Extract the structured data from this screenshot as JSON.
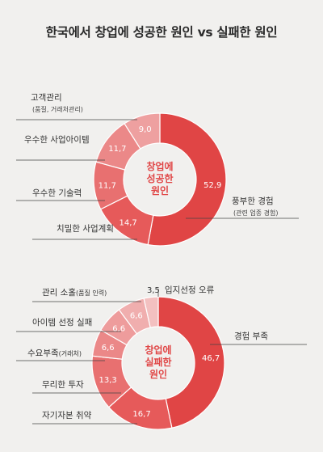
{
  "title": "한국에서 창업에 성공한 원인 vs 실패한 원인",
  "chart_data": [
    {
      "type": "pie",
      "center_label": [
        "창업에",
        "성공한",
        "원인"
      ],
      "slices": [
        {
          "label": "풍부한 경험",
          "sublabel": "(관련 업종 경험)",
          "value": 52.9,
          "display": "52,9",
          "color": "#e04545"
        },
        {
          "label": "치밀한 사업계획",
          "sublabel": "",
          "value": 14.7,
          "display": "14,7",
          "color": "#e65a5a"
        },
        {
          "label": "우수한 기술력",
          "sublabel": "",
          "value": 11.7,
          "display": "11,7",
          "color": "#e87070"
        },
        {
          "label": "우수한 사업아이템",
          "sublabel": "",
          "value": 11.7,
          "display": "11,7",
          "color": "#eb8888"
        },
        {
          "label": "고객관리",
          "sublabel": "(품질, 거래처관리)",
          "value": 9.0,
          "display": "9,0",
          "color": "#eea0a0"
        }
      ]
    },
    {
      "type": "pie",
      "center_label": [
        "창업에",
        "실패한",
        "원인"
      ],
      "slices": [
        {
          "label": "경험 부족",
          "sublabel": "",
          "value": 46.7,
          "display": "46,7",
          "color": "#e04545"
        },
        {
          "label": "자기자본 취약",
          "sublabel": "",
          "value": 16.7,
          "display": "16,7",
          "color": "#e65a5a"
        },
        {
          "label": "무리한 투자",
          "sublabel": "",
          "value": 13.3,
          "display": "13,3",
          "color": "#e87070"
        },
        {
          "label": "수요부족",
          "sublabel": "(거래처)",
          "value": 6.6,
          "display": "6,6",
          "color": "#eb8888"
        },
        {
          "label": "아이템 선정 실패",
          "sublabel": "",
          "value": 6.6,
          "display": "6,6",
          "color": "#ee9c9c"
        },
        {
          "label": "관리 소홀",
          "sublabel": "(품질 인력)",
          "value": 6.6,
          "display": "6,6",
          "color": "#f0aeae"
        },
        {
          "label": "입지선정 오류",
          "sublabel": "",
          "value": 3.5,
          "display": "3,5",
          "color": "#f3c0c0"
        }
      ]
    }
  ]
}
